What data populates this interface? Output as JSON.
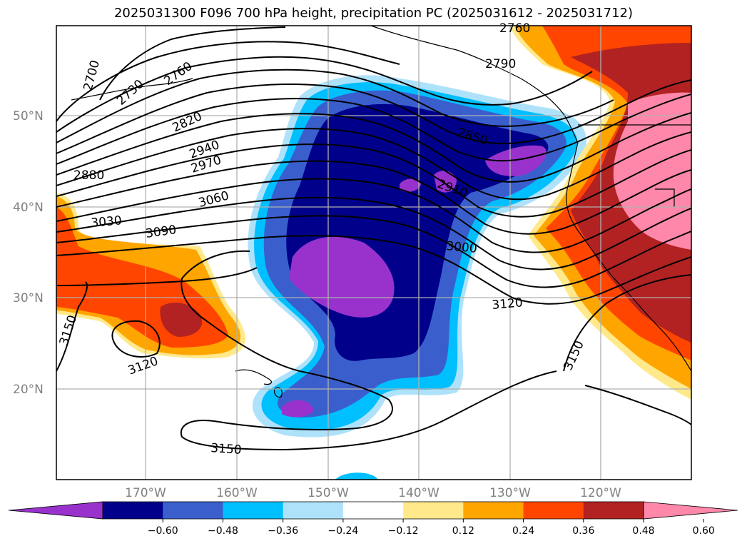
{
  "title": "2025031300 F096 700 hPa height, precipitation PC (2025031612 - 2025031712)",
  "lat_ticks": [
    "50°N",
    "40°N",
    "30°N",
    "20°N"
  ],
  "lon_ticks": [
    "170°W",
    "160°W",
    "150°W",
    "140°W",
    "130°W",
    "120°W"
  ],
  "contour_labels": [
    "2760",
    "2790",
    "2700",
    "2730",
    "2760",
    "2820",
    "2850",
    "2880",
    "2910",
    "2940",
    "2970",
    "3000",
    "3030",
    "3060",
    "3090",
    "3120",
    "3120",
    "3150",
    "3150",
    "3150"
  ],
  "colorbar": {
    "ticks": [
      "−0.60",
      "−0.48",
      "−0.36",
      "−0.24",
      "−0.12",
      "0.12",
      "0.24",
      "0.36",
      "0.48",
      "0.60"
    ],
    "colors": [
      "#9932cc",
      "#00008b",
      "#3a5fcd",
      "#00bfff",
      "#aee2fa",
      "#ffffff",
      "#ffe98a",
      "#ffa500",
      "#ff4500",
      "#b22222",
      "#ff88aa"
    ]
  }
}
